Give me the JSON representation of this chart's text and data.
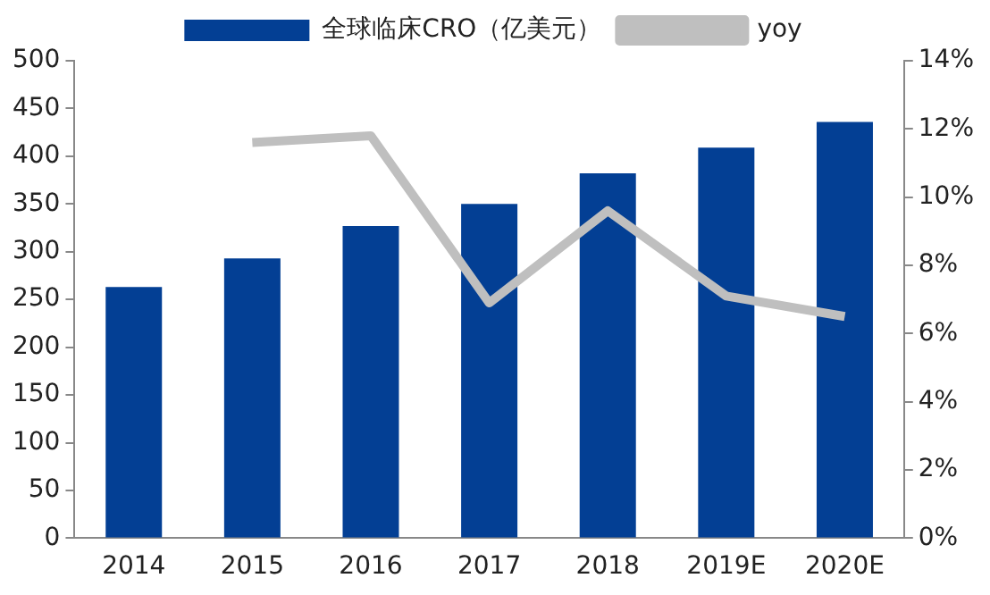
{
  "chart_data": {
    "type": "bar",
    "categories": [
      "2014",
      "2015",
      "2016",
      "2017",
      "2018",
      "2019E",
      "2020E"
    ],
    "series": [
      {
        "name": "全球临床CRO（亿美元）",
        "color": "#033f94",
        "values": [
          263,
          293,
          327,
          350,
          382,
          409,
          436
        ]
      },
      {
        "name": "yoy",
        "type": "line",
        "axis": "y2",
        "color": "#bfbfbf",
        "values": [
          null,
          11.6,
          11.8,
          6.9,
          9.6,
          7.1,
          6.5
        ]
      }
    ],
    "ylim": [
      0,
      500
    ],
    "yticks": [
      0,
      50,
      100,
      150,
      200,
      250,
      300,
      350,
      400,
      450,
      500
    ],
    "y2lim": [
      0,
      14
    ],
    "y2ticks": [
      {
        "value": 0,
        "label": "0%"
      },
      {
        "value": 2,
        "label": "2%"
      },
      {
        "value": 4,
        "label": "4%"
      },
      {
        "value": 6,
        "label": "6%"
      },
      {
        "value": 8,
        "label": "8%"
      },
      {
        "value": 10,
        "label": "10%"
      },
      {
        "value": 12,
        "label": "12%"
      },
      {
        "value": 14,
        "label": "14%"
      }
    ],
    "grid": false,
    "legend": "top",
    "marker": "none"
  }
}
